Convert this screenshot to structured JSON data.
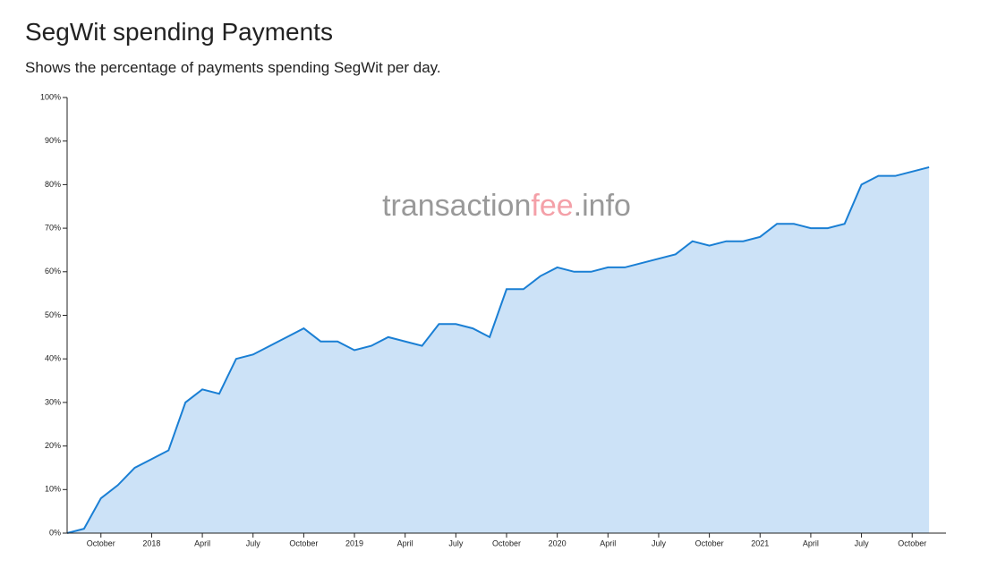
{
  "chart_data": {
    "type": "area",
    "title": "SegWit spending Payments",
    "subtitle": "Shows the percentage of payments spending SegWit per day.",
    "watermark": [
      "transaction",
      "fee",
      ".info"
    ],
    "watermark_colors": [
      "#999999",
      "#f4a0a8",
      "#999999"
    ],
    "color": "#1a7fd4",
    "fill": "#cce2f7",
    "x": [
      "2017-08",
      "2017-09",
      "2017-10",
      "2017-11",
      "2017-12",
      "2018-01",
      "2018-02",
      "2018-03",
      "2018-04",
      "2018-05",
      "2018-06",
      "2018-07",
      "2018-08",
      "2018-09",
      "2018-10",
      "2018-11",
      "2018-12",
      "2019-01",
      "2019-02",
      "2019-03",
      "2019-04",
      "2019-05",
      "2019-06",
      "2019-07",
      "2019-08",
      "2019-09",
      "2019-10",
      "2019-11",
      "2019-12",
      "2020-01",
      "2020-02",
      "2020-03",
      "2020-04",
      "2020-05",
      "2020-06",
      "2020-07",
      "2020-08",
      "2020-09",
      "2020-10",
      "2020-11",
      "2020-12",
      "2021-01",
      "2021-02",
      "2021-03",
      "2021-04",
      "2021-05",
      "2021-06",
      "2021-07",
      "2021-08",
      "2021-09",
      "2021-10",
      "2021-11"
    ],
    "values": [
      0,
      1,
      8,
      11,
      15,
      17,
      19,
      30,
      33,
      32,
      40,
      41,
      43,
      45,
      47,
      44,
      44,
      42,
      43,
      45,
      44,
      43,
      48,
      48,
      47,
      45,
      56,
      56,
      59,
      61,
      60,
      60,
      61,
      61,
      62,
      63,
      64,
      67,
      66,
      67,
      67,
      68,
      71,
      71,
      70,
      70,
      71,
      80,
      82,
      82,
      83,
      84
    ],
    "xlim": [
      "2017-08",
      "2021-12"
    ],
    "xticks": [
      {
        "value": "2017-10",
        "label": "October"
      },
      {
        "value": "2018-01",
        "label": "2018"
      },
      {
        "value": "2018-04",
        "label": "April"
      },
      {
        "value": "2018-07",
        "label": "July"
      },
      {
        "value": "2018-10",
        "label": "October"
      },
      {
        "value": "2019-01",
        "label": "2019"
      },
      {
        "value": "2019-04",
        "label": "April"
      },
      {
        "value": "2019-07",
        "label": "July"
      },
      {
        "value": "2019-10",
        "label": "October"
      },
      {
        "value": "2020-01",
        "label": "2020"
      },
      {
        "value": "2020-04",
        "label": "April"
      },
      {
        "value": "2020-07",
        "label": "July"
      },
      {
        "value": "2020-10",
        "label": "October"
      },
      {
        "value": "2021-01",
        "label": "2021"
      },
      {
        "value": "2021-04",
        "label": "April"
      },
      {
        "value": "2021-07",
        "label": "July"
      },
      {
        "value": "2021-10",
        "label": "October"
      }
    ],
    "ylim": [
      0,
      100
    ],
    "yticks": [
      {
        "value": 0,
        "label": "0%"
      },
      {
        "value": 10,
        "label": "10%"
      },
      {
        "value": 20,
        "label": "20%"
      },
      {
        "value": 30,
        "label": "30%"
      },
      {
        "value": 40,
        "label": "40%"
      },
      {
        "value": 50,
        "label": "50%"
      },
      {
        "value": 60,
        "label": "60%"
      },
      {
        "value": 70,
        "label": "70%"
      },
      {
        "value": 80,
        "label": "80%"
      },
      {
        "value": 90,
        "label": "90%"
      },
      {
        "value": 100,
        "label": "100%"
      }
    ]
  }
}
